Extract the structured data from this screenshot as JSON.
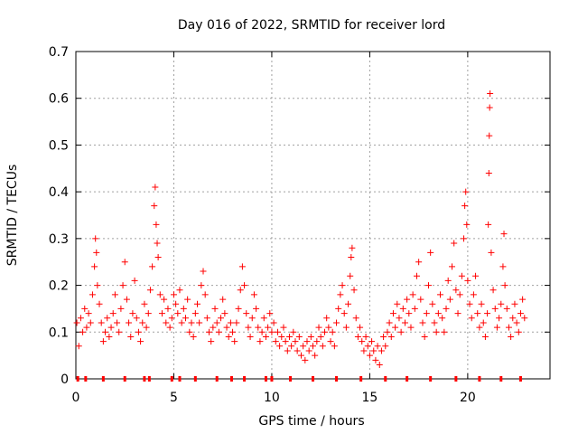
{
  "chart_data": {
    "type": "scatter",
    "title": "Day 016 of 2022, SRMTID for receiver lord",
    "xlabel": "GPS time / hours",
    "ylabel": "SRMTID / TECUs",
    "xlim": [
      0,
      24.2
    ],
    "ylim": [
      0,
      0.7
    ],
    "xticks": [
      0,
      5,
      10,
      15,
      20
    ],
    "xtick_labels": [
      "0",
      "5",
      "10",
      "15",
      "20"
    ],
    "yticks": [
      0,
      0.1,
      0.2,
      0.3,
      0.4,
      0.5,
      0.6,
      0.7
    ],
    "ytick_labels": [
      "0",
      "0.1",
      "0.2",
      "0.3",
      "0.4",
      "0.5",
      "0.6",
      "0.7"
    ],
    "grid": true,
    "marker": "+",
    "series_color": "#ff0000",
    "series": [
      {
        "name": "SRMTID",
        "points": [
          [
            0.05,
            0.12
          ],
          [
            0.15,
            0.07
          ],
          [
            0.25,
            0.13
          ],
          [
            0.35,
            0.1
          ],
          [
            0.45,
            0.15
          ],
          [
            0.55,
            0.11
          ],
          [
            0.65,
            0.14
          ],
          [
            0.75,
            0.12
          ],
          [
            0.85,
            0.18
          ],
          [
            0.95,
            0.24
          ],
          [
            1.0,
            0.3
          ],
          [
            1.05,
            0.27
          ],
          [
            1.1,
            0.2
          ],
          [
            1.2,
            0.16
          ],
          [
            1.3,
            0.12
          ],
          [
            1.4,
            0.08
          ],
          [
            1.5,
            0.1
          ],
          [
            1.6,
            0.13
          ],
          [
            1.7,
            0.09
          ],
          [
            1.8,
            0.11
          ],
          [
            1.9,
            0.14
          ],
          [
            2.0,
            0.18
          ],
          [
            2.1,
            0.12
          ],
          [
            2.2,
            0.1
          ],
          [
            2.3,
            0.15
          ],
          [
            2.4,
            0.2
          ],
          [
            2.5,
            0.25
          ],
          [
            2.6,
            0.17
          ],
          [
            2.7,
            0.12
          ],
          [
            2.8,
            0.09
          ],
          [
            2.9,
            0.14
          ],
          [
            3.0,
            0.21
          ],
          [
            3.1,
            0.13
          ],
          [
            3.2,
            0.1
          ],
          [
            3.3,
            0.08
          ],
          [
            3.4,
            0.12
          ],
          [
            3.5,
            0.16
          ],
          [
            3.6,
            0.11
          ],
          [
            3.7,
            0.14
          ],
          [
            3.8,
            0.19
          ],
          [
            3.9,
            0.24
          ],
          [
            4.0,
            0.37
          ],
          [
            4.05,
            0.41
          ],
          [
            4.1,
            0.33
          ],
          [
            4.15,
            0.29
          ],
          [
            4.2,
            0.26
          ],
          [
            4.3,
            0.18
          ],
          [
            4.4,
            0.14
          ],
          [
            4.5,
            0.17
          ],
          [
            4.6,
            0.12
          ],
          [
            4.7,
            0.15
          ],
          [
            4.8,
            0.11
          ],
          [
            4.9,
            0.13
          ],
          [
            5.0,
            0.18
          ],
          [
            5.1,
            0.16
          ],
          [
            5.2,
            0.14
          ],
          [
            5.3,
            0.19
          ],
          [
            5.4,
            0.12
          ],
          [
            5.5,
            0.15
          ],
          [
            5.6,
            0.13
          ],
          [
            5.7,
            0.17
          ],
          [
            5.8,
            0.1
          ],
          [
            5.9,
            0.12
          ],
          [
            6.0,
            0.09
          ],
          [
            6.1,
            0.14
          ],
          [
            6.2,
            0.16
          ],
          [
            6.3,
            0.12
          ],
          [
            6.4,
            0.2
          ],
          [
            6.5,
            0.23
          ],
          [
            6.6,
            0.18
          ],
          [
            6.7,
            0.13
          ],
          [
            6.8,
            0.1
          ],
          [
            6.9,
            0.08
          ],
          [
            7.0,
            0.11
          ],
          [
            7.1,
            0.15
          ],
          [
            7.2,
            0.12
          ],
          [
            7.3,
            0.1
          ],
          [
            7.4,
            0.13
          ],
          [
            7.5,
            0.17
          ],
          [
            7.6,
            0.14
          ],
          [
            7.7,
            0.11
          ],
          [
            7.8,
            0.09
          ],
          [
            7.9,
            0.12
          ],
          [
            8.0,
            0.1
          ],
          [
            8.1,
            0.08
          ],
          [
            8.2,
            0.12
          ],
          [
            8.3,
            0.15
          ],
          [
            8.4,
            0.19
          ],
          [
            8.5,
            0.24
          ],
          [
            8.6,
            0.2
          ],
          [
            8.7,
            0.14
          ],
          [
            8.8,
            0.11
          ],
          [
            8.9,
            0.09
          ],
          [
            9.0,
            0.13
          ],
          [
            9.1,
            0.18
          ],
          [
            9.2,
            0.15
          ],
          [
            9.3,
            0.11
          ],
          [
            9.4,
            0.08
          ],
          [
            9.5,
            0.1
          ],
          [
            9.6,
            0.13
          ],
          [
            9.7,
            0.09
          ],
          [
            9.8,
            0.11
          ],
          [
            9.9,
            0.14
          ],
          [
            10.0,
            0.1
          ],
          [
            10.1,
            0.12
          ],
          [
            10.2,
            0.08
          ],
          [
            10.3,
            0.1
          ],
          [
            10.4,
            0.07
          ],
          [
            10.5,
            0.09
          ],
          [
            10.6,
            0.11
          ],
          [
            10.7,
            0.08
          ],
          [
            10.8,
            0.06
          ],
          [
            10.9,
            0.09
          ],
          [
            11.0,
            0.07
          ],
          [
            11.1,
            0.1
          ],
          [
            11.2,
            0.08
          ],
          [
            11.3,
            0.06
          ],
          [
            11.4,
            0.09
          ],
          [
            11.5,
            0.05
          ],
          [
            11.6,
            0.07
          ],
          [
            11.7,
            0.04
          ],
          [
            11.8,
            0.08
          ],
          [
            11.9,
            0.06
          ],
          [
            12.0,
            0.09
          ],
          [
            12.1,
            0.07
          ],
          [
            12.2,
            0.05
          ],
          [
            12.3,
            0.08
          ],
          [
            12.4,
            0.11
          ],
          [
            12.5,
            0.09
          ],
          [
            12.6,
            0.07
          ],
          [
            12.7,
            0.1
          ],
          [
            12.8,
            0.13
          ],
          [
            12.9,
            0.11
          ],
          [
            13.0,
            0.08
          ],
          [
            13.1,
            0.1
          ],
          [
            13.2,
            0.07
          ],
          [
            13.3,
            0.12
          ],
          [
            13.4,
            0.15
          ],
          [
            13.5,
            0.18
          ],
          [
            13.6,
            0.2
          ],
          [
            13.7,
            0.14
          ],
          [
            13.8,
            0.11
          ],
          [
            13.9,
            0.16
          ],
          [
            14.0,
            0.22
          ],
          [
            14.05,
            0.26
          ],
          [
            14.1,
            0.28
          ],
          [
            14.2,
            0.19
          ],
          [
            14.3,
            0.13
          ],
          [
            14.4,
            0.09
          ],
          [
            14.5,
            0.11
          ],
          [
            14.6,
            0.08
          ],
          [
            14.7,
            0.06
          ],
          [
            14.8,
            0.09
          ],
          [
            14.9,
            0.07
          ],
          [
            15.0,
            0.05
          ],
          [
            15.1,
            0.08
          ],
          [
            15.2,
            0.06
          ],
          [
            15.3,
            0.04
          ],
          [
            15.4,
            0.07
          ],
          [
            15.5,
            0.03
          ],
          [
            15.6,
            0.06
          ],
          [
            15.7,
            0.09
          ],
          [
            15.8,
            0.07
          ],
          [
            15.9,
            0.1
          ],
          [
            16.0,
            0.12
          ],
          [
            16.1,
            0.09
          ],
          [
            16.2,
            0.14
          ],
          [
            16.3,
            0.11
          ],
          [
            16.4,
            0.16
          ],
          [
            16.5,
            0.13
          ],
          [
            16.6,
            0.1
          ],
          [
            16.7,
            0.15
          ],
          [
            16.8,
            0.12
          ],
          [
            16.9,
            0.17
          ],
          [
            17.0,
            0.14
          ],
          [
            17.1,
            0.11
          ],
          [
            17.2,
            0.18
          ],
          [
            17.3,
            0.15
          ],
          [
            17.4,
            0.22
          ],
          [
            17.5,
            0.25
          ],
          [
            17.6,
            0.17
          ],
          [
            17.7,
            0.12
          ],
          [
            17.8,
            0.09
          ],
          [
            17.9,
            0.14
          ],
          [
            18.0,
            0.2
          ],
          [
            18.1,
            0.27
          ],
          [
            18.2,
            0.16
          ],
          [
            18.3,
            0.12
          ],
          [
            18.4,
            0.1
          ],
          [
            18.5,
            0.14
          ],
          [
            18.6,
            0.18
          ],
          [
            18.7,
            0.13
          ],
          [
            18.8,
            0.1
          ],
          [
            18.9,
            0.15
          ],
          [
            19.0,
            0.21
          ],
          [
            19.1,
            0.17
          ],
          [
            19.2,
            0.24
          ],
          [
            19.3,
            0.29
          ],
          [
            19.4,
            0.19
          ],
          [
            19.5,
            0.14
          ],
          [
            19.6,
            0.18
          ],
          [
            19.7,
            0.22
          ],
          [
            19.8,
            0.3
          ],
          [
            19.85,
            0.37
          ],
          [
            19.9,
            0.4
          ],
          [
            19.95,
            0.33
          ],
          [
            20.0,
            0.21
          ],
          [
            20.1,
            0.16
          ],
          [
            20.2,
            0.13
          ],
          [
            20.3,
            0.18
          ],
          [
            20.4,
            0.22
          ],
          [
            20.5,
            0.14
          ],
          [
            20.6,
            0.11
          ],
          [
            20.7,
            0.16
          ],
          [
            20.8,
            0.12
          ],
          [
            20.9,
            0.09
          ],
          [
            21.0,
            0.14
          ],
          [
            21.05,
            0.33
          ],
          [
            21.08,
            0.44
          ],
          [
            21.1,
            0.52
          ],
          [
            21.12,
            0.58
          ],
          [
            21.14,
            0.61
          ],
          [
            21.2,
            0.27
          ],
          [
            21.3,
            0.19
          ],
          [
            21.4,
            0.15
          ],
          [
            21.5,
            0.11
          ],
          [
            21.6,
            0.13
          ],
          [
            21.7,
            0.16
          ],
          [
            21.8,
            0.24
          ],
          [
            21.85,
            0.31
          ],
          [
            21.9,
            0.2
          ],
          [
            22.0,
            0.15
          ],
          [
            22.1,
            0.11
          ],
          [
            22.2,
            0.09
          ],
          [
            22.3,
            0.13
          ],
          [
            22.4,
            0.16
          ],
          [
            22.5,
            0.12
          ],
          [
            22.6,
            0.1
          ],
          [
            22.7,
            0.14
          ],
          [
            22.8,
            0.17
          ],
          [
            22.9,
            0.13
          ]
        ]
      }
    ],
    "baseline_ticks": [
      0.1,
      0.5,
      1.4,
      2.5,
      3.5,
      3.75,
      4.9,
      5.3,
      6.1,
      7.2,
      7.95,
      8.6,
      9.7,
      10.0,
      10.95,
      12.1,
      13.3,
      14.55,
      15.8,
      16.9,
      18.1,
      19.4,
      20.6,
      21.7,
      22.7
    ]
  }
}
